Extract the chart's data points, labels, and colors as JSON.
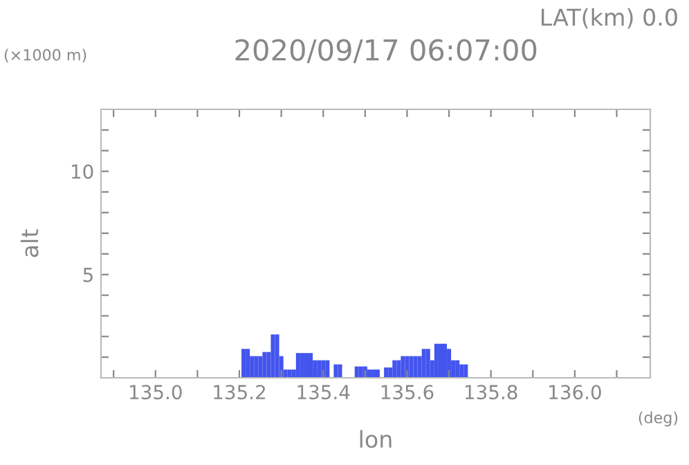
{
  "chart_data": {
    "type": "bar",
    "title": "2020/09/17 06:07:00",
    "subtitle": "LAT(km) 0.0",
    "xlabel": "lon",
    "ylabel": "alt",
    "annotations": [
      "(×1000 m)",
      "(deg)"
    ],
    "x": [
      135.21,
      135.22,
      135.23,
      135.24,
      135.25,
      135.26,
      135.27,
      135.28,
      135.29,
      135.3,
      135.31,
      135.32,
      135.33,
      135.34,
      135.35,
      135.36,
      135.37,
      135.38,
      135.39,
      135.4,
      135.41,
      135.42,
      135.43,
      135.44,
      135.45,
      135.46,
      135.47,
      135.48,
      135.49,
      135.5,
      135.51,
      135.52,
      135.53,
      135.54,
      135.55,
      135.56,
      135.57,
      135.58,
      135.59,
      135.6,
      135.61,
      135.62,
      135.63,
      135.64,
      135.65,
      135.66,
      135.67,
      135.68,
      135.69,
      135.7,
      135.71,
      135.72,
      135.73,
      135.74
    ],
    "values": [
      1.4,
      1.4,
      1.05,
      1.05,
      1.05,
      1.25,
      1.25,
      2.1,
      2.1,
      1.05,
      0.4,
      0.4,
      0.4,
      1.2,
      1.2,
      1.2,
      1.2,
      0.85,
      0.85,
      0.85,
      0.85,
      null,
      0.65,
      0.65,
      null,
      null,
      null,
      0.55,
      0.55,
      0.55,
      0.4,
      0.4,
      0.4,
      null,
      0.5,
      0.5,
      0.85,
      0.85,
      1.05,
      1.05,
      1.05,
      1.05,
      1.05,
      1.4,
      1.4,
      0.85,
      1.65,
      1.65,
      1.65,
      1.4,
      0.85,
      0.85,
      0.65,
      0.65
    ],
    "color": "#4455ee",
    "xlim": [
      134.87,
      136.18
    ],
    "ylim": [
      0,
      13
    ],
    "xticks": [
      {
        "value": 134.9,
        "label": null
      },
      {
        "value": 135.0,
        "label": "135.0"
      },
      {
        "value": 135.1,
        "label": null
      },
      {
        "value": 135.2,
        "label": "135.2"
      },
      {
        "value": 135.3,
        "label": null
      },
      {
        "value": 135.4,
        "label": "135.4"
      },
      {
        "value": 135.5,
        "label": null
      },
      {
        "value": 135.6,
        "label": "135.6"
      },
      {
        "value": 135.7,
        "label": null
      },
      {
        "value": 135.8,
        "label": "135.8"
      },
      {
        "value": 135.9,
        "label": null
      },
      {
        "value": 136.0,
        "label": "136.0"
      },
      {
        "value": 136.1,
        "label": null
      }
    ],
    "yticks": [
      {
        "value": 1,
        "label": null
      },
      {
        "value": 2,
        "label": null
      },
      {
        "value": 3,
        "label": null
      },
      {
        "value": 4,
        "label": null
      },
      5,
      {
        "value": 6,
        "label": null
      },
      {
        "value": 7,
        "label": null
      },
      {
        "value": 8,
        "label": null
      },
      {
        "value": 9,
        "label": null
      },
      10,
      {
        "value": 11,
        "label": null
      },
      {
        "value": 12,
        "label": null
      }
    ],
    "grid": false,
    "legend": false
  }
}
